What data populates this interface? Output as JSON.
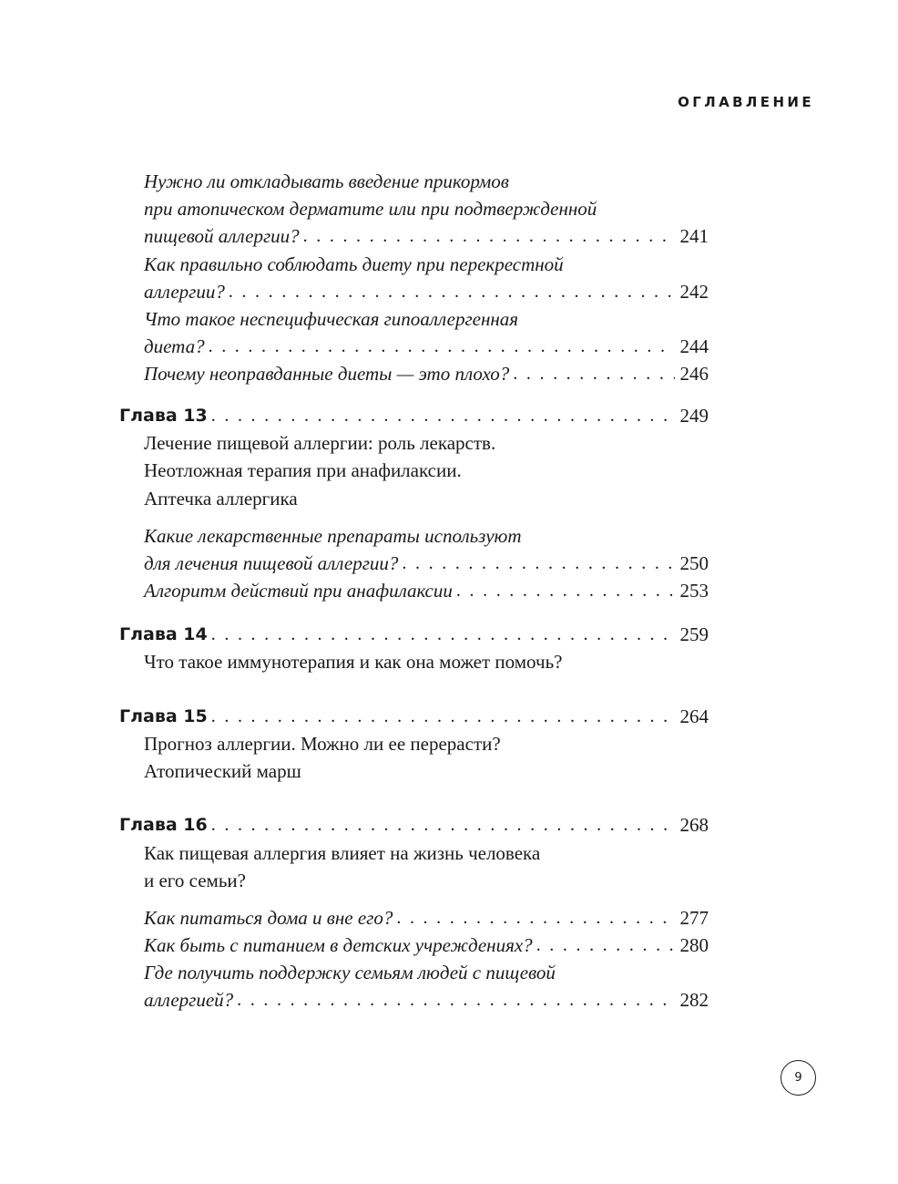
{
  "header": "ОГЛАВЛЕНИЕ",
  "page_number": "9",
  "items": [
    {
      "lines": [
        "Нужно ли откладывать введение прикормов",
        "при атопическом дерматите или при подтвержденной",
        "пищевой аллергии?"
      ],
      "page": "241"
    },
    {
      "lines": [
        "Как правильно соблюдать диету при перекрестной",
        "аллергии?"
      ],
      "page": "242"
    },
    {
      "lines": [
        "Что такое неспецифическая гипоаллергенная",
        "диета?"
      ],
      "page": "244"
    },
    {
      "lines": [
        "Почему неоправданные диеты — это плохо?"
      ],
      "page": "246"
    },
    {
      "chapter": "Глава 13",
      "page": "249",
      "title": [
        "Лечение пищевой аллергии: роль лекарств.",
        "Неотложная терапия при анафилаксии.",
        "Аптечка аллергика"
      ]
    },
    {
      "lines": [
        "Какие лекарственные препараты используют",
        "для лечения пищевой аллергии?"
      ],
      "page": "250"
    },
    {
      "lines": [
        "Алгоритм действий при анафилаксии"
      ],
      "page": "253"
    },
    {
      "chapter": "Глава 14",
      "page": "259",
      "title": [
        "Что такое иммунотерапия и как она может помочь?"
      ]
    },
    {
      "chapter": "Глава 15",
      "page": "264",
      "title": [
        "Прогноз аллергии. Можно ли ее перерасти?",
        "Атопический марш"
      ]
    },
    {
      "chapter": "Глава 16",
      "page": "268",
      "title": [
        "Как пищевая аллергия влияет на жизнь человека",
        "и его семьи?"
      ]
    },
    {
      "lines": [
        "Как питаться дома и вне его?"
      ],
      "page": "277"
    },
    {
      "lines": [
        "Как быть с питанием в детских учреждениях?"
      ],
      "page": "280"
    },
    {
      "lines": [
        "Где получить поддержку семьям людей с пищевой",
        "аллергией?"
      ],
      "page": "282"
    }
  ]
}
